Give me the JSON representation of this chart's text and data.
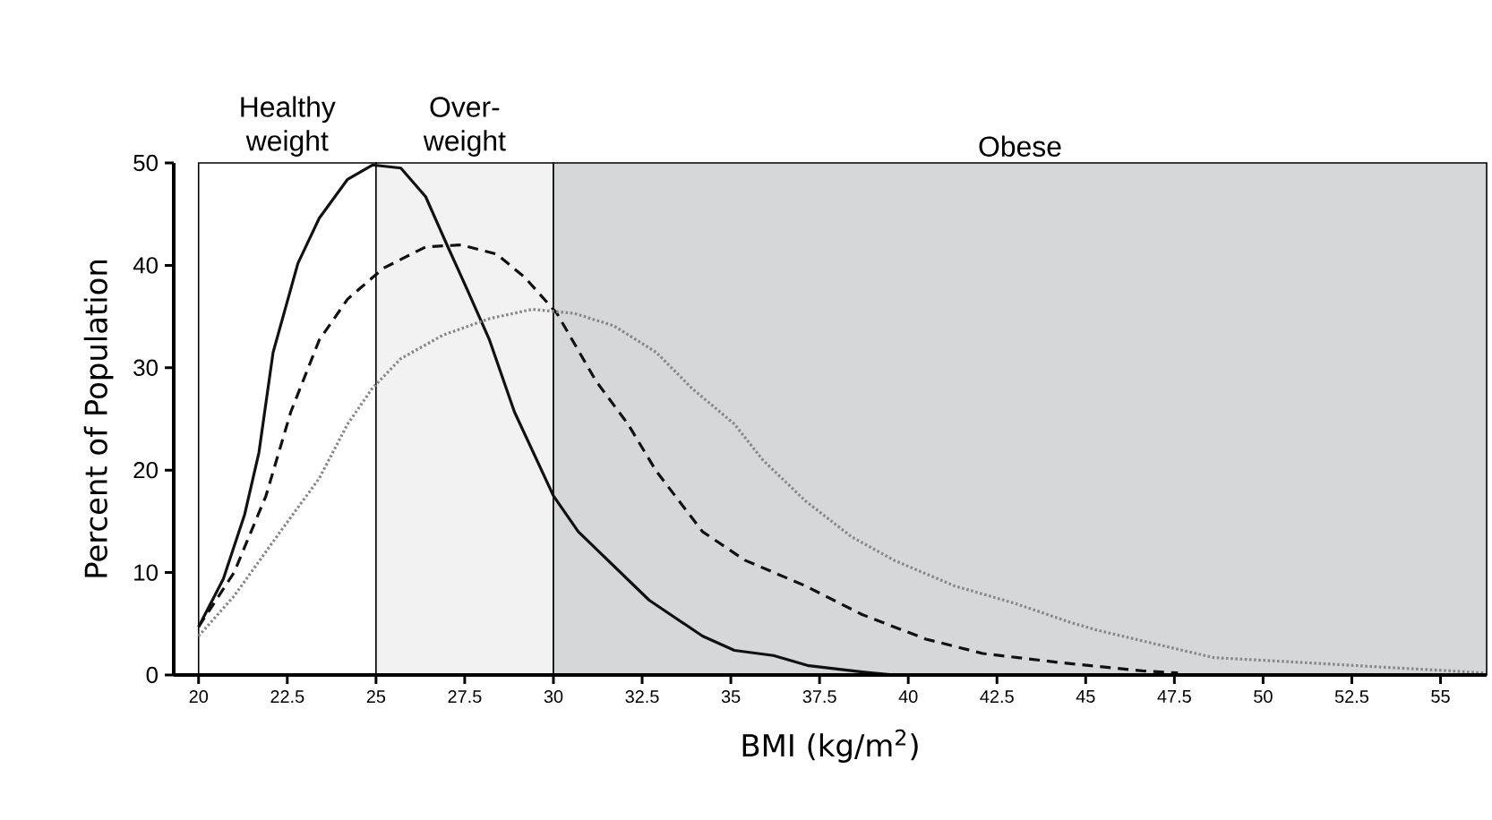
{
  "chart_data": {
    "type": "line",
    "xlabel": "BMI (kg/m$^{2}$)",
    "ylabel": "Percent of Population",
    "xlim": [
      19.3,
      56.3
    ],
    "ylim": [
      0,
      50
    ],
    "xticks": [
      20,
      22.5,
      25,
      27.5,
      30,
      32.5,
      35,
      37.5,
      40,
      42.5,
      45,
      47.5,
      50,
      52.5,
      55
    ],
    "yticks": [
      0,
      10,
      20,
      30,
      40,
      50
    ],
    "marker": "none",
    "bands": [
      {
        "axis": "x",
        "from": 20,
        "to": 25,
        "label": "Healthy weight",
        "color": "#ffffff"
      },
      {
        "axis": "x",
        "from": 25,
        "to": 30,
        "label": "Over-weight",
        "color": "#f2f2f2"
      },
      {
        "axis": "x",
        "from": 30,
        "to": 56.3,
        "label": "Obese",
        "color": "#d6d7d9"
      }
    ],
    "series": [
      {
        "color": "#111111",
        "line_style": "solid",
        "x": [
          20,
          20.7,
          21.3,
          21.7,
          22.1,
          22.8,
          23.4,
          24.2,
          24.9,
          25.7,
          26.4,
          27.0,
          27.6,
          28.2,
          28.9,
          30.0,
          30.7,
          32.7,
          34.2,
          35.1,
          36.2,
          37.2,
          38.7,
          39.6
        ],
        "values": [
          4.7,
          9.4,
          15.7,
          21.7,
          31.5,
          40.2,
          44.6,
          48.4,
          49.8,
          49.5,
          46.7,
          42,
          37.4,
          32.7,
          25.7,
          17.5,
          14,
          7.3,
          3.8,
          2.4,
          1.9,
          0.9,
          0.3,
          0
        ]
      },
      {
        "color": "#111111",
        "line_style": "dashed",
        "x": [
          20,
          21.0,
          21.9,
          22.6,
          23.4,
          24.2,
          25.2,
          26.4,
          27.4,
          28.4,
          29.2,
          30.1,
          31.2,
          32.1,
          32.9,
          34.2,
          35.4,
          37.1,
          38.7,
          40.5,
          42.1,
          44.3,
          46.6,
          47.6
        ],
        "values": [
          4.7,
          10,
          17.5,
          25.7,
          32.7,
          36.7,
          39.7,
          41.8,
          42,
          41.1,
          38.8,
          35.3,
          28.7,
          24.5,
          19.9,
          14,
          11.2,
          8.7,
          5.9,
          3.5,
          2.1,
          1.2,
          0.4,
          0.2
        ]
      },
      {
        "color": "#888888",
        "line_style": "dotted",
        "x": [
          20,
          21.0,
          22.2,
          23.4,
          24.2,
          24.9,
          25.7,
          26.9,
          28.2,
          29.4,
          30.6,
          31.7,
          32.9,
          33.9,
          35.1,
          35.9,
          37.1,
          38.4,
          39.6,
          41.3,
          43.0,
          44.6,
          45.3,
          47.0,
          48.6,
          51.2,
          53.7,
          55.3,
          56.2
        ],
        "values": [
          3.8,
          7.7,
          13.5,
          19.2,
          24.5,
          28,
          30.9,
          33.2,
          34.8,
          35.7,
          35.3,
          34.1,
          31.5,
          28,
          24.5,
          21,
          17,
          13.5,
          11.2,
          8.7,
          7,
          5.1,
          4.4,
          3,
          1.7,
          1.2,
          0.7,
          0.4,
          0.2
        ]
      }
    ]
  }
}
